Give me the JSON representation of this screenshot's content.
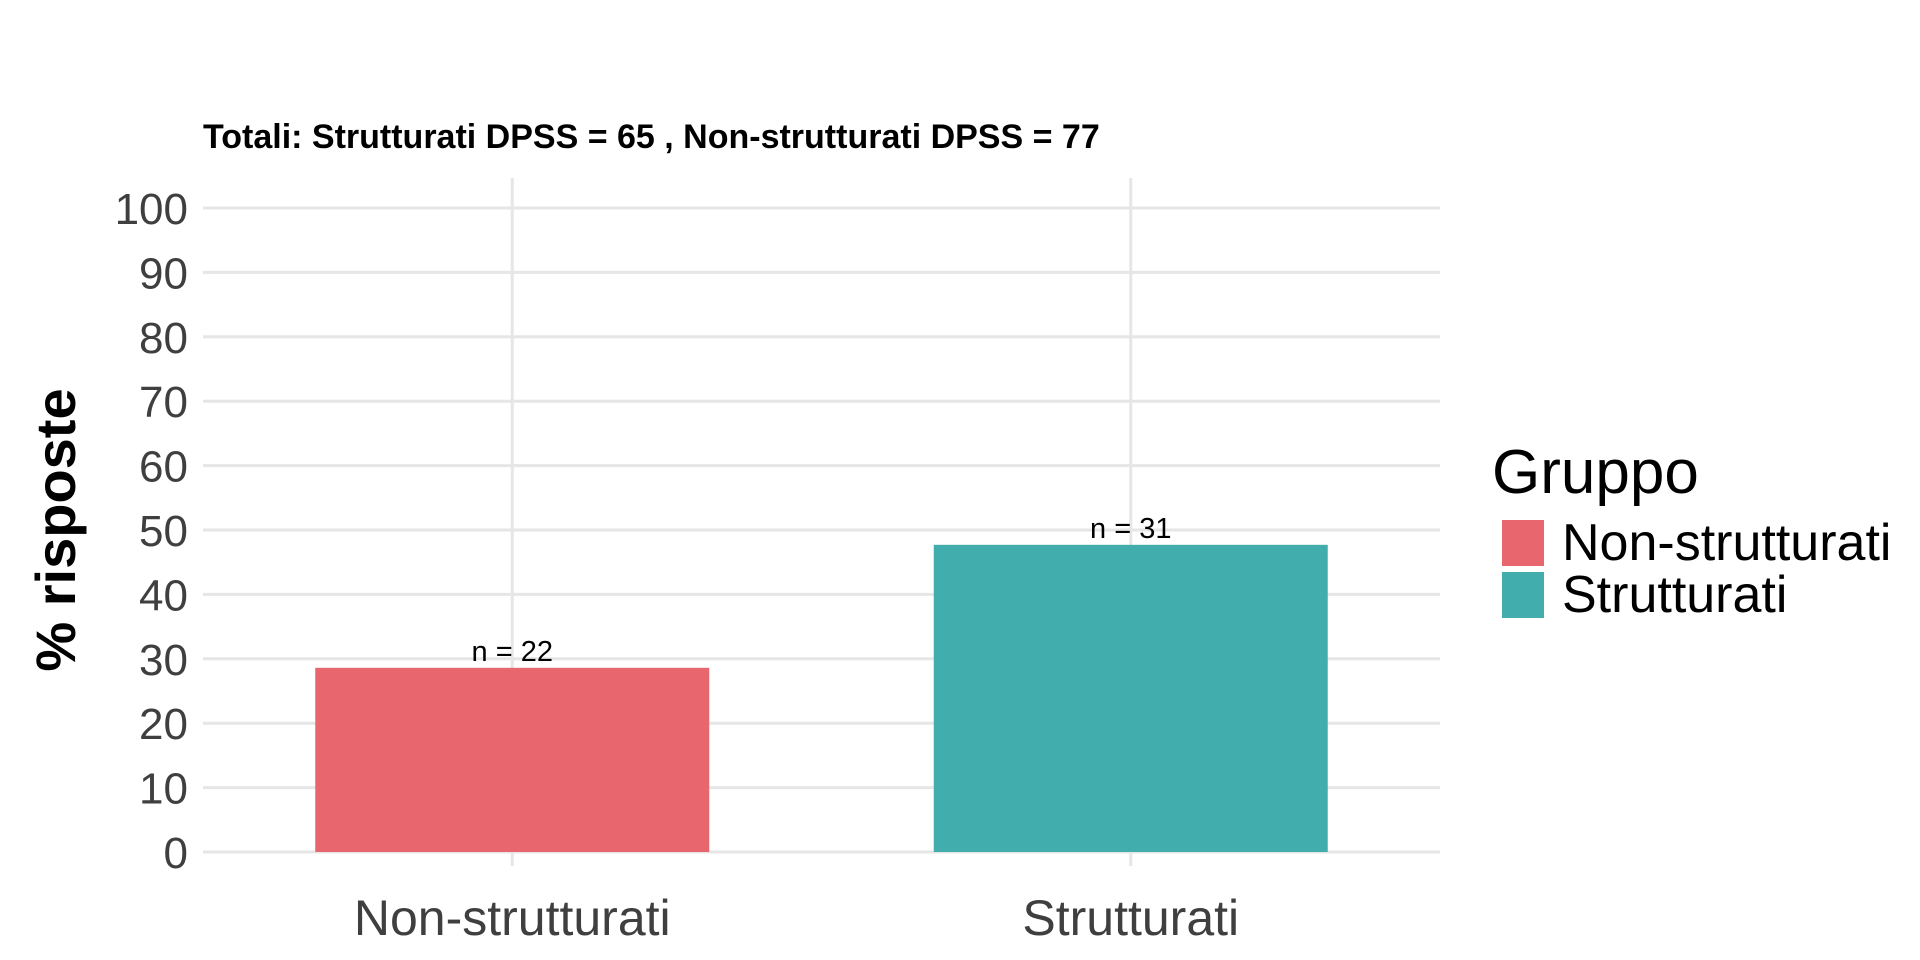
{
  "chart_data": {
    "type": "bar",
    "title": "",
    "subtitle": "Totali: Strutturati DPSS = 65 , Non-strutturati DPSS = 77",
    "xlabel": "",
    "ylabel": "% risposte",
    "categories": [
      "Non-strutturati",
      "Strutturati"
    ],
    "values": [
      28.6,
      47.7
    ],
    "data_labels": [
      "n = 22",
      "n = 31"
    ],
    "colors": [
      "#E8666E",
      "#42ADAD"
    ],
    "ylim": [
      0,
      100
    ],
    "yticks": [
      0,
      10,
      20,
      30,
      40,
      50,
      60,
      70,
      80,
      90,
      100
    ],
    "grid": true,
    "legend": {
      "title": "Gruppo",
      "position": "right",
      "entries": [
        {
          "label": "Non-strutturati",
          "color": "#E8666E"
        },
        {
          "label": "Strutturati",
          "color": "#42ADAD"
        }
      ]
    }
  }
}
